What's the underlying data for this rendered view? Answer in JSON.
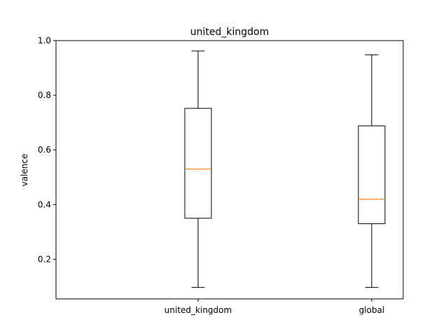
{
  "chart_data": {
    "type": "box",
    "title": "united_kingdom",
    "xlabel": "",
    "ylabel": "valence",
    "ylim": [
      0.055,
      1.0
    ],
    "yticks": [
      0.2,
      0.4,
      0.6,
      0.8,
      1.0
    ],
    "ytick_labels": [
      "0.2",
      "0.4",
      "0.6",
      "0.8",
      "1.0"
    ],
    "grid": false,
    "categories": [
      "united_kingdom",
      "global"
    ],
    "boxes": [
      {
        "whisker_low": 0.097,
        "q1": 0.35,
        "median": 0.53,
        "q3": 0.752,
        "whisker_high": 0.962
      },
      {
        "whisker_low": 0.097,
        "q1": 0.33,
        "median": 0.42,
        "q3": 0.688,
        "whisker_high": 0.948
      }
    ],
    "colors": {
      "box": "#000000",
      "median": "#ff7f0e",
      "axes": "#000000"
    }
  }
}
